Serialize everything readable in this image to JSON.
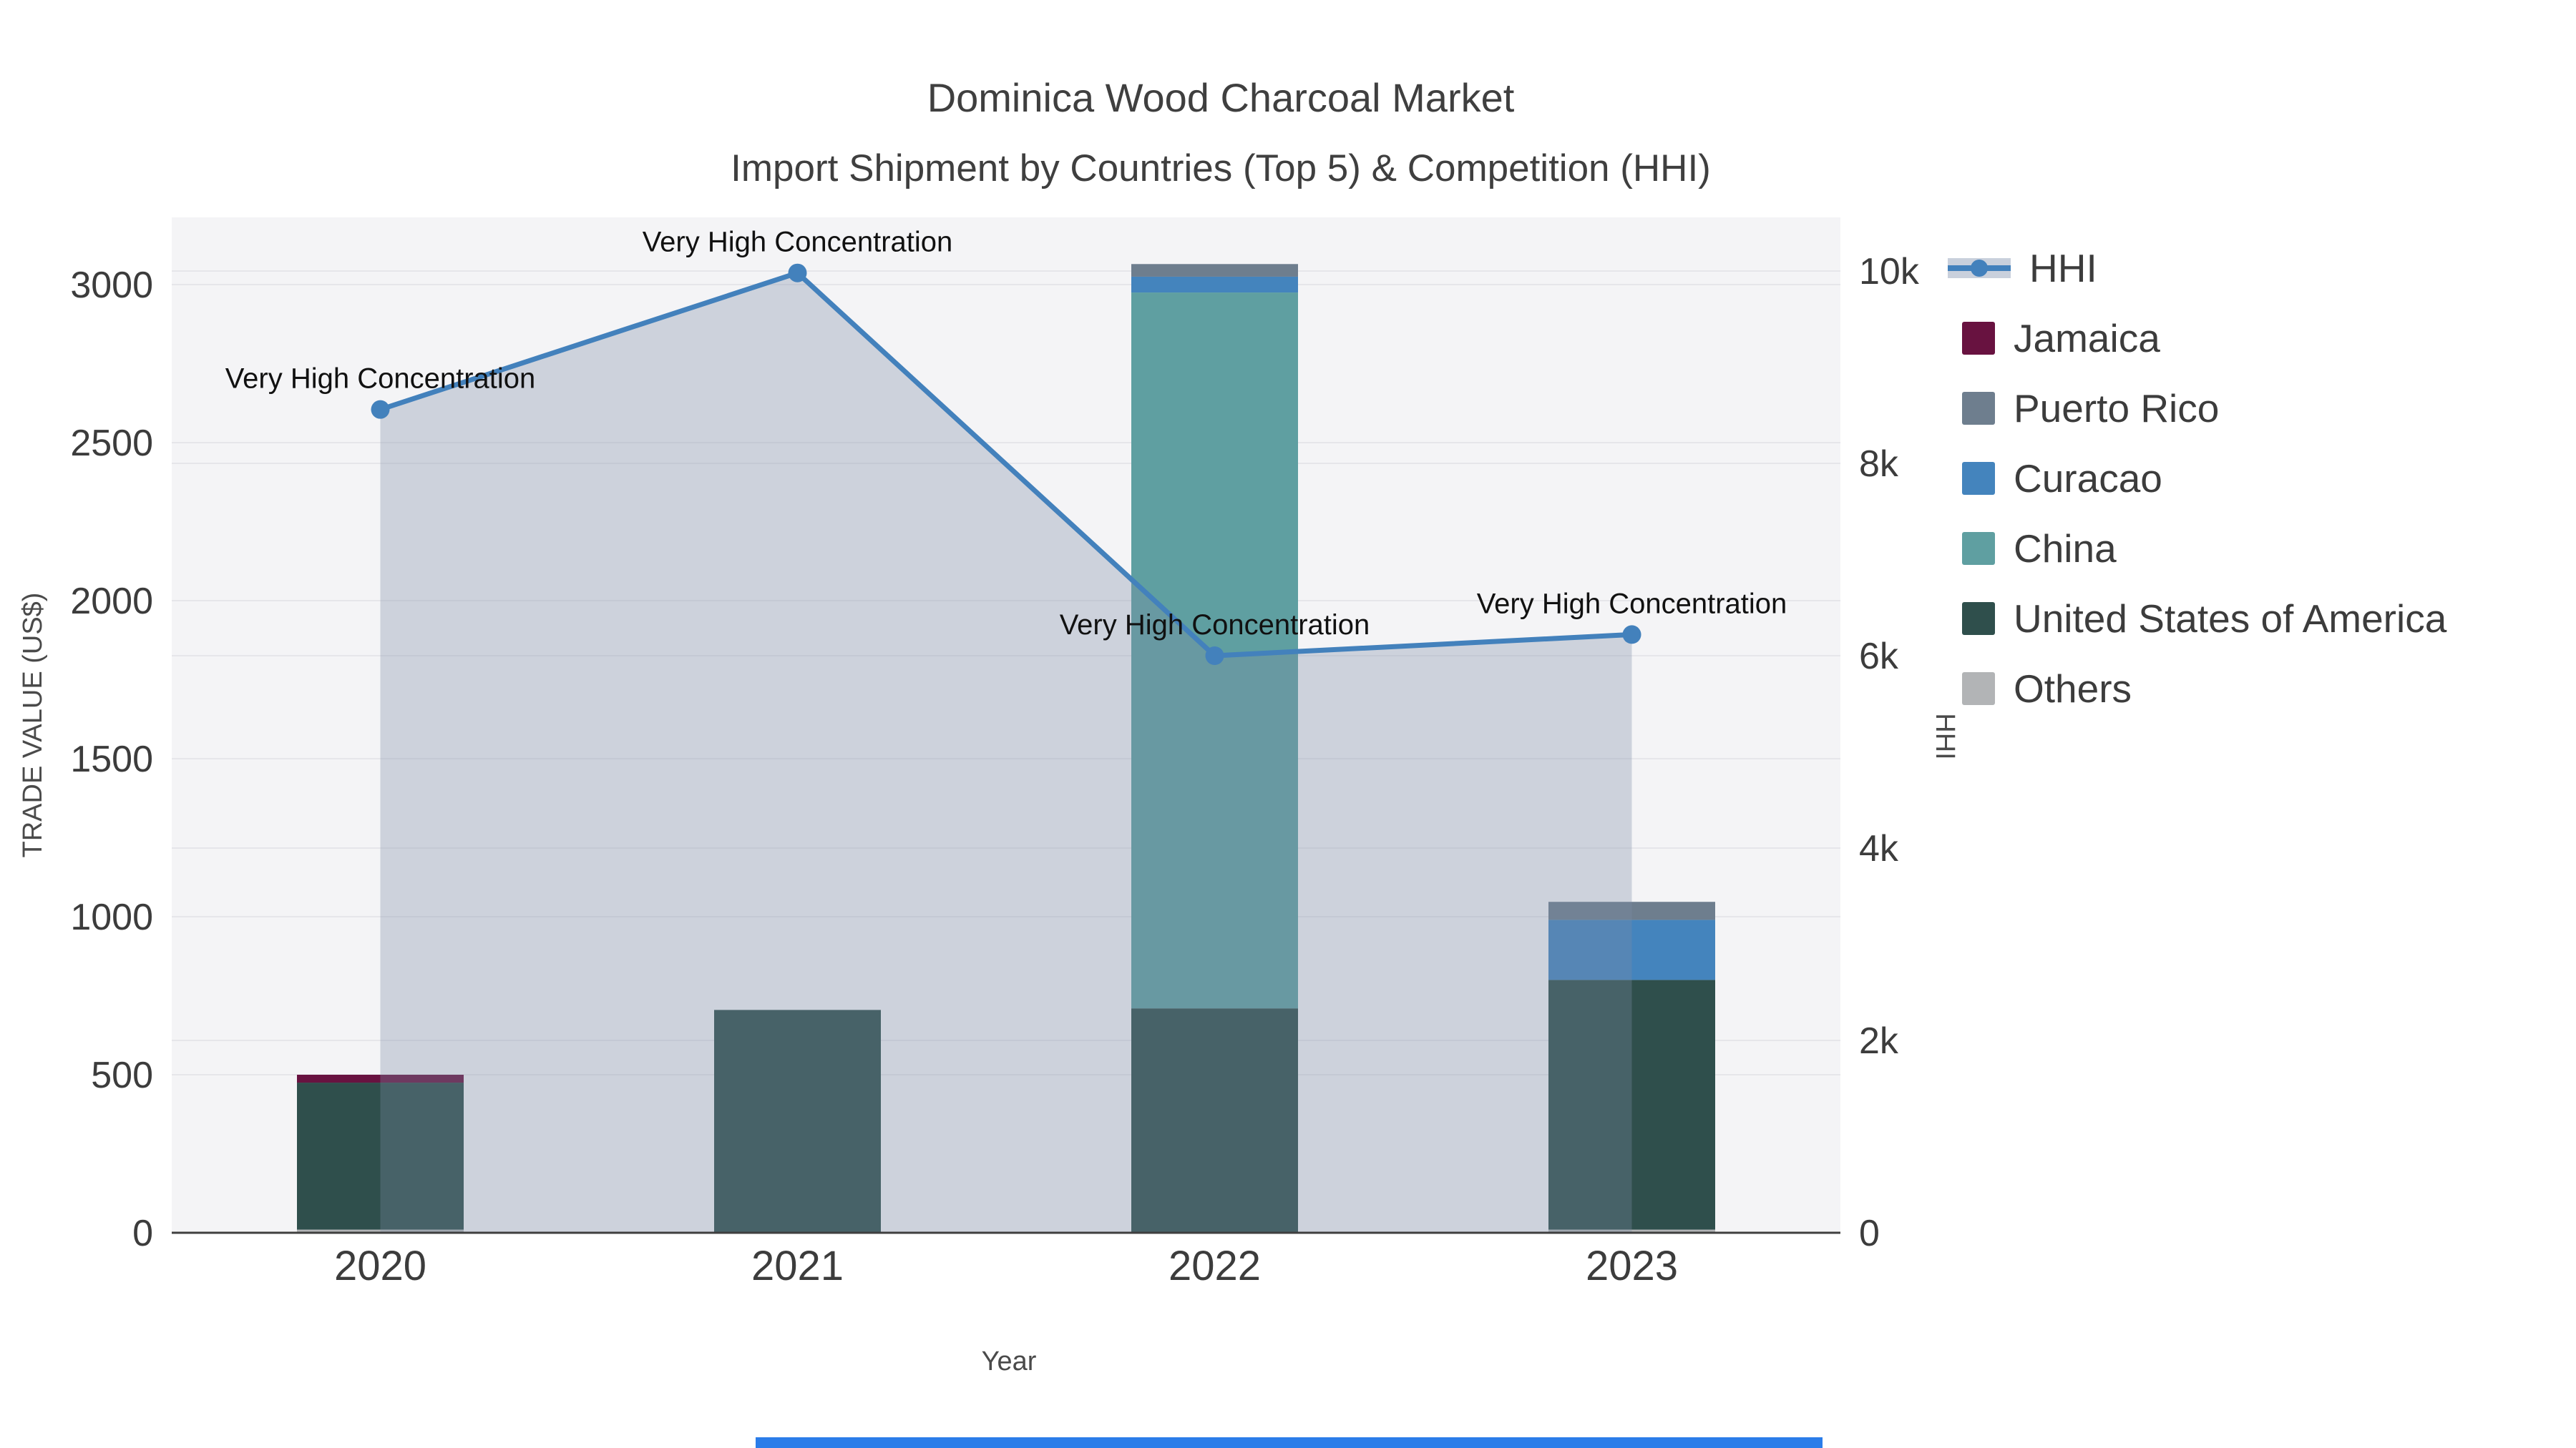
{
  "title": {
    "text": "Dominica Wood Charcoal Market",
    "subtitle": "Import Shipment by Countries (Top 5) & Competition (HHI)"
  },
  "axes": {
    "left": {
      "label": "TRADE VALUE (US$)",
      "ticks": [
        0,
        500,
        1000,
        1500,
        2000,
        2500,
        3000
      ]
    },
    "right": {
      "label": "HHI",
      "ticks": [
        {
          "value": 0,
          "label": "0"
        },
        {
          "value": 2000,
          "label": "2k"
        },
        {
          "value": 4000,
          "label": "4k"
        },
        {
          "value": 6000,
          "label": "6k"
        },
        {
          "value": 8000,
          "label": "8k"
        },
        {
          "value": 10000,
          "label": "10k"
        }
      ]
    },
    "x": {
      "label": "Year",
      "categories": [
        "2020",
        "2021",
        "2022",
        "2023"
      ]
    }
  },
  "legend": {
    "items": [
      {
        "label": "HHI",
        "type": "line",
        "color": "#4381bc",
        "band": "#c9d0dc"
      },
      {
        "label": "Jamaica",
        "type": "square",
        "color": "#681240"
      },
      {
        "label": "Puerto Rico",
        "type": "square",
        "color": "#6e7e8e"
      },
      {
        "label": "Curacao",
        "type": "square",
        "color": "#4484bd"
      },
      {
        "label": "China",
        "type": "square",
        "color": "#5f9fa1"
      },
      {
        "label": "United States of America",
        "type": "square",
        "color": "#2f4f4c"
      },
      {
        "label": "Others",
        "type": "square",
        "color": "#b2b4b6"
      }
    ]
  },
  "chart_data": {
    "type": "bar",
    "subtype": "stacked-bars-with-line",
    "title": "Dominica Wood Charcoal Market — Import Shipment by Countries (Top 5) & Competition (HHI)",
    "categories": [
      "2020",
      "2021",
      "2022",
      "2023"
    ],
    "series": [
      {
        "name": "Others",
        "color": "#b2b4b6",
        "values": [
          10,
          0,
          0,
          10
        ]
      },
      {
        "name": "United States of America",
        "color": "#2f4f4c",
        "values": [
          465,
          705,
          710,
          790
        ]
      },
      {
        "name": "China",
        "color": "#5f9fa1",
        "values": [
          0,
          0,
          2265,
          0
        ]
      },
      {
        "name": "Curacao",
        "color": "#4484bd",
        "values": [
          0,
          0,
          50,
          190
        ]
      },
      {
        "name": "Puerto Rico",
        "color": "#6e7e8e",
        "values": [
          0,
          0,
          40,
          57
        ]
      },
      {
        "name": "Jamaica",
        "color": "#681240",
        "values": [
          25,
          0,
          0,
          0
        ]
      }
    ],
    "line_series": {
      "name": "HHI",
      "axis": "right",
      "color": "#4381bc",
      "fill_color": "rgba(125,140,165,0.32)",
      "values": [
        8560,
        9980,
        6000,
        6220
      ]
    },
    "annotations": [
      {
        "text": "Very High Concentration",
        "category": "2020"
      },
      {
        "text": "Very High Concentration",
        "category": "2021"
      },
      {
        "text": "Very High Concentration",
        "category": "2022"
      },
      {
        "text": "Very High Concentration",
        "category": "2023"
      }
    ],
    "xlabel": "Year",
    "ylabel_left": "TRADE VALUE (US$)",
    "ylabel_right": "HHI",
    "ylim_left": [
      0,
      3212
    ],
    "ylim_right": [
      0,
      10450
    ],
    "grid": true,
    "legend_position": "right",
    "plot_background": "#f4f4f6",
    "gridline_color": "#e6e6ea",
    "axis_line_color": "#3f3f3f",
    "tick_color": "#3c3c3c"
  }
}
